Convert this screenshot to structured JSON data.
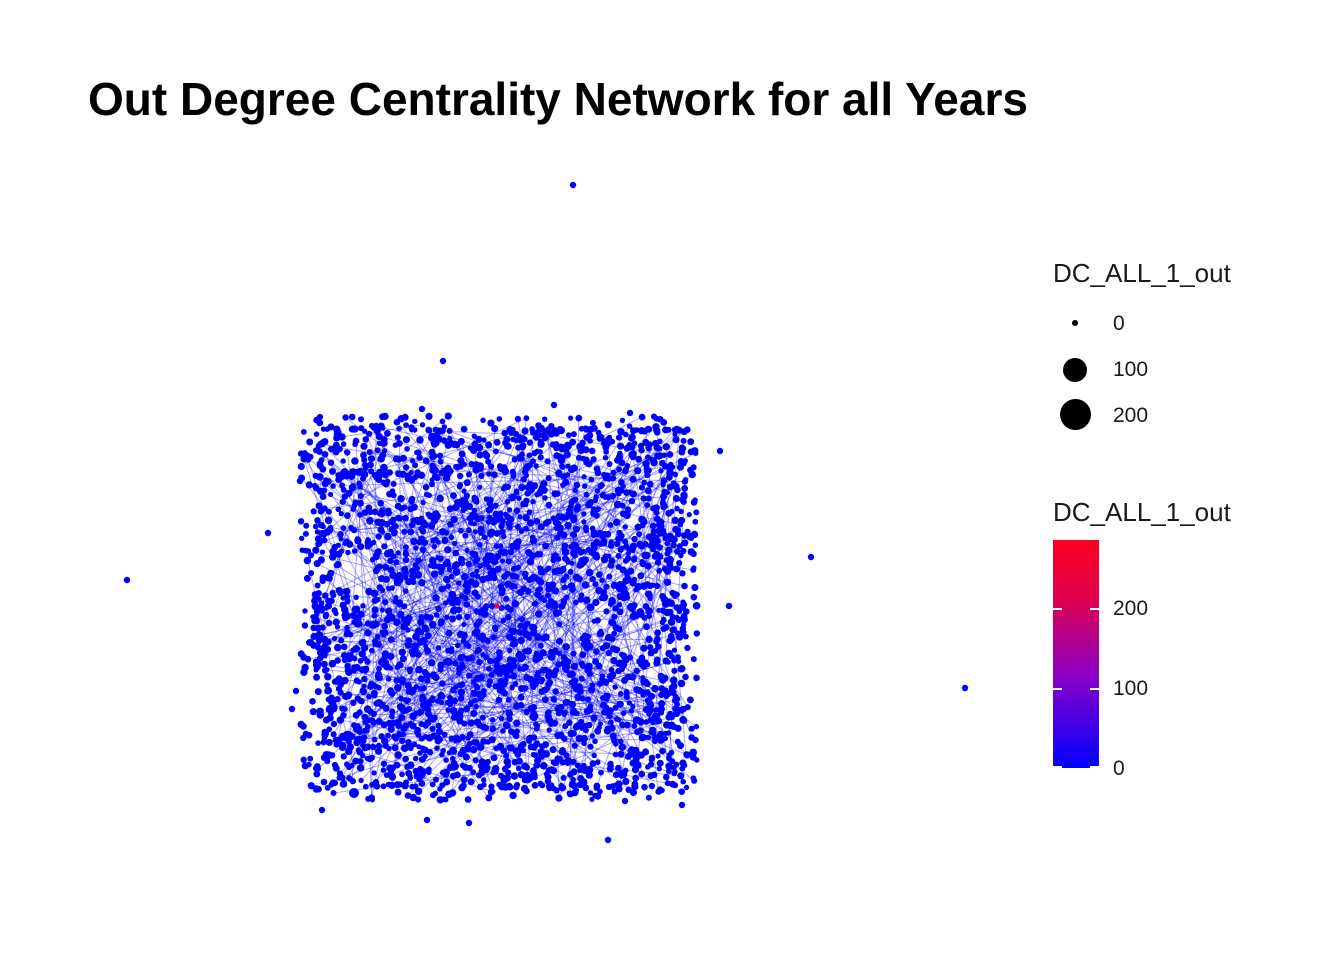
{
  "title": "Out Degree Centrality Network for all Years",
  "legend_size": {
    "title": "DC_ALL_1_out",
    "entries": [
      {
        "label": "0"
      },
      {
        "label": "100"
      },
      {
        "label": "200"
      }
    ]
  },
  "legend_color": {
    "title": "DC_ALL_1_out",
    "ticks": [
      {
        "label": "200"
      },
      {
        "label": "100"
      },
      {
        "label": "0"
      }
    ],
    "low_color": "#0000ff",
    "high_color": "#ff0022",
    "range": [
      0,
      285
    ]
  },
  "colors": {
    "node": "#0000ff",
    "hub": "#ff0022",
    "edge": "#0000ff"
  }
}
